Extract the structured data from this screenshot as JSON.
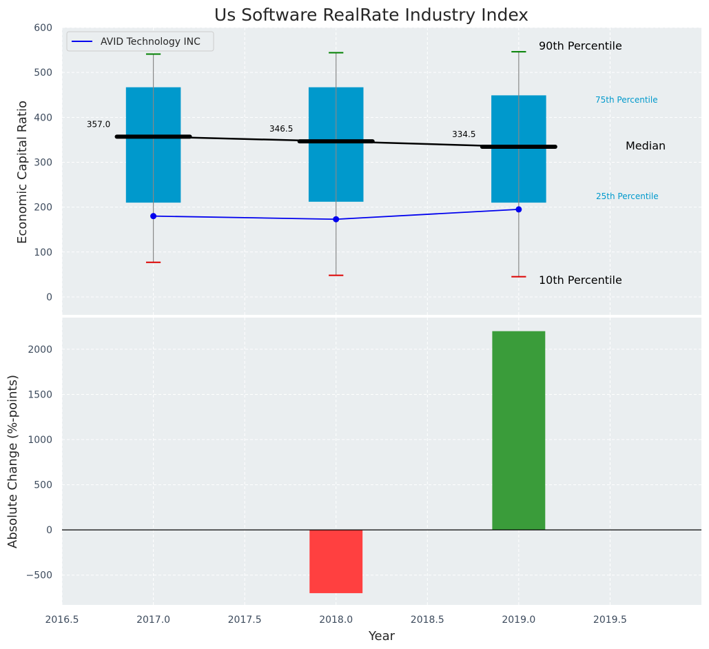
{
  "chart_data": [
    {
      "type": "box",
      "title": "Us Software RealRate Industry Index",
      "ylabel": "Economic Capital Ratio",
      "xlim": [
        2016.5,
        2020.0
      ],
      "ylim": [
        -40,
        600
      ],
      "yticks": [
        0,
        100,
        200,
        300,
        400,
        500,
        600
      ],
      "grid": true,
      "legend": {
        "position": "top-left",
        "entries": [
          "AVID Technology INC"
        ]
      },
      "years": [
        2017.0,
        2018.0,
        2019.0
      ],
      "p10": [
        77,
        48,
        45
      ],
      "p25": [
        210,
        212,
        210
      ],
      "median": [
        357.0,
        346.5,
        334.5
      ],
      "median_labels": [
        "357.0",
        "346.5",
        "334.5"
      ],
      "p75": [
        467,
        467,
        449
      ],
      "p90": [
        541,
        544,
        546
      ],
      "series": [
        {
          "name": "AVID Technology INC",
          "x": [
            2017.0,
            2018.0,
            2019.0
          ],
          "values": [
            180,
            173,
            195
          ]
        }
      ],
      "annotations": {
        "p90": "90th Percentile",
        "p75": "75th Percentile",
        "median": "Median",
        "p25": "25th Percentile",
        "p10": "10th Percentile"
      },
      "colors": {
        "box": "#0099cc",
        "p90": "#008000",
        "p10": "#dd0000",
        "median": "#000000",
        "series": "#0000ee",
        "background": "#eaeef0"
      }
    },
    {
      "type": "bar",
      "xlabel": "Year",
      "ylabel": "Absolute Change (%-points)",
      "xlim": [
        2016.5,
        2020.0
      ],
      "ylim": [
        -830,
        2350
      ],
      "xticks": [
        2016.5,
        2017.0,
        2017.5,
        2018.0,
        2018.5,
        2019.0,
        2019.5
      ],
      "xtick_labels": [
        "2016.5",
        "2017.0",
        "2017.5",
        "2018.0",
        "2018.5",
        "2019.0",
        "2019.5"
      ],
      "yticks": [
        -500,
        0,
        500,
        1000,
        1500,
        2000
      ],
      "ytick_labels": [
        "−500",
        "0",
        "500",
        "1000",
        "1500",
        "2000"
      ],
      "grid": true,
      "x": [
        2018.0,
        2019.0
      ],
      "values": [
        -700,
        2200
      ],
      "colors": {
        "positive": "#3a9c3a",
        "negative": "#ff4040"
      }
    }
  ]
}
